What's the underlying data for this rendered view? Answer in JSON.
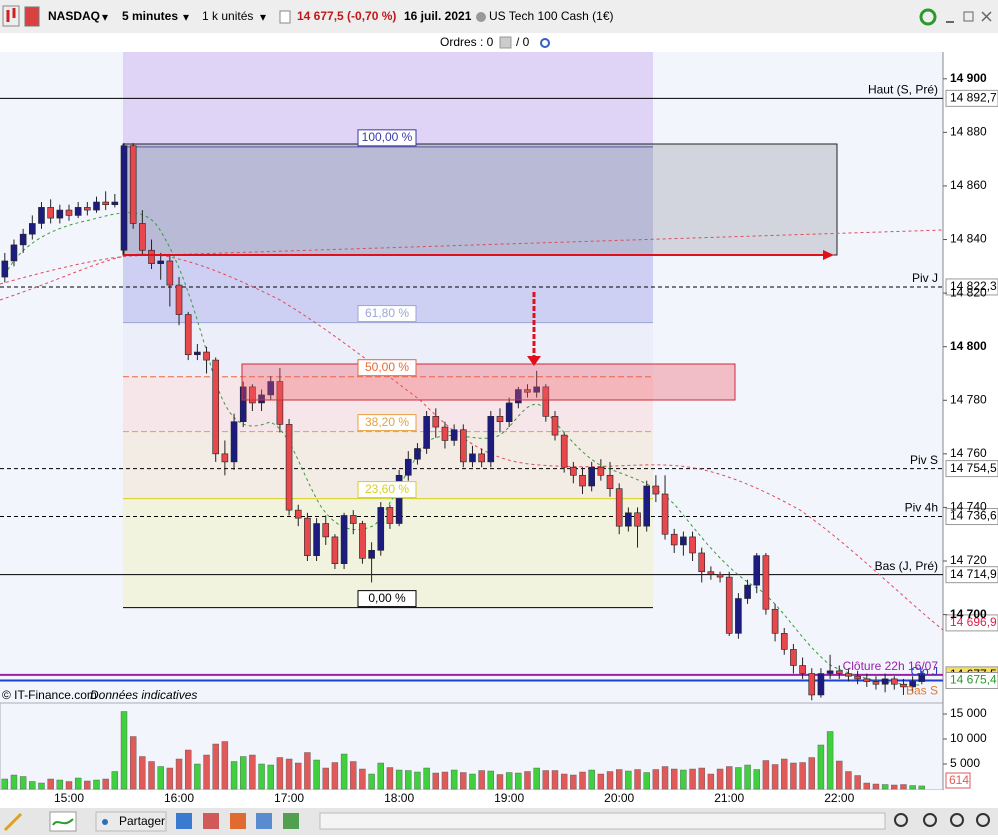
{
  "toolbar": {
    "symbol": "NASDAQ",
    "interval": "5 minutes",
    "size": "1 k unités",
    "quote": "14 677,5 (-0,70 %)",
    "date": "16 juil. 2021",
    "instrument": "US Tech 100 Cash (1€)"
  },
  "orders": {
    "label": "Ordres : 0",
    "pending": "/ 0"
  },
  "footer": {
    "copyright": "© IT-Finance.com",
    "note": "Données indicatives",
    "share": "Partager"
  },
  "chart_data": [
    {
      "type": "candlestick",
      "up_color": "#1c1c80",
      "down_color": "#e8474b",
      "categories": [
        null,
        null,
        null,
        null,
        null,
        null,
        null,
        "15:00",
        null,
        null,
        null,
        null,
        null,
        null,
        null,
        null,
        null,
        null,
        null,
        "16:00",
        null,
        null,
        null,
        null,
        null,
        null,
        null,
        null,
        null,
        null,
        null,
        "17:00",
        null,
        null,
        null,
        null,
        null,
        null,
        null,
        null,
        null,
        null,
        null,
        "18:00",
        null,
        null,
        null,
        null,
        null,
        null,
        null,
        null,
        null,
        null,
        null,
        "19:00",
        null,
        null,
        null,
        null,
        null,
        null,
        null,
        null,
        null,
        null,
        null,
        "20:00",
        null,
        null,
        null,
        null,
        null,
        null,
        null,
        null,
        null,
        null,
        null,
        "21:00",
        null,
        null,
        null,
        null,
        null,
        null,
        null,
        null,
        null,
        null,
        null,
        "22:00",
        null,
        null,
        null,
        null,
        null,
        null,
        null,
        null,
        null
      ],
      "open": [
        14826,
        14832,
        14838,
        14842,
        14846,
        14852,
        14848,
        14851,
        14849,
        14852,
        14851,
        14854,
        14853,
        14836,
        14875,
        14846,
        14836,
        14831,
        14832,
        14823,
        14812,
        14797,
        14798,
        14795,
        14760,
        14757,
        14772,
        14785,
        14779,
        14782,
        14787,
        14771,
        14739,
        14736,
        14722,
        14734,
        14729,
        14719,
        14737,
        14734,
        14721,
        14724,
        14740,
        14734,
        14752,
        14758,
        14762,
        14774,
        14770,
        14765,
        14769,
        14757,
        14760,
        14757,
        14774,
        14772,
        14779,
        14784,
        14783,
        14785,
        14774,
        14767,
        14755,
        14752,
        14748,
        14755,
        14752,
        14747,
        14733,
        14738,
        14733,
        14748,
        14745,
        14730,
        14726,
        14729,
        14723,
        14716,
        14715,
        14714,
        14693,
        14706,
        14711,
        14722,
        14702,
        14693,
        14687,
        14681,
        14678,
        14670,
        14678,
        14679,
        14678,
        14677,
        14676,
        14675,
        14674,
        14676,
        14674,
        14673,
        14675
      ],
      "high": [
        14835,
        14840,
        14844,
        14849,
        14854,
        14855,
        14853,
        14853,
        14854,
        14854,
        14856,
        14858,
        14857,
        14876,
        14876,
        14851,
        14840,
        14835,
        14834,
        14826,
        14813,
        14801,
        14800,
        14796,
        14765,
        14775,
        14787,
        14786,
        14784,
        14789,
        14792,
        14773,
        14741,
        14738,
        14736,
        14737,
        14730,
        14738,
        14739,
        14735,
        14727,
        14742,
        14741,
        14754,
        14761,
        14764,
        14776,
        14777,
        14772,
        14771,
        14771,
        14763,
        14762,
        14776,
        14777,
        14781,
        14785,
        14786,
        14791,
        14786,
        14776,
        14768,
        14757,
        14755,
        14757,
        14758,
        14757,
        14749,
        14740,
        14740,
        14750,
        14752,
        14752,
        14732,
        14731,
        14731,
        14725,
        14718,
        14716,
        14716,
        14708,
        14713,
        14723,
        14723,
        14704,
        14695,
        14689,
        14684,
        14680,
        14680,
        14685,
        14681,
        14680,
        14679,
        14678,
        14677,
        14678,
        14677,
        14676,
        14677,
        14679
      ],
      "low": [
        14824,
        14830,
        14835,
        14840,
        14844,
        14846,
        14846,
        14847,
        14848,
        14849,
        14850,
        14851,
        14852,
        14834,
        14844,
        14834,
        14829,
        14825,
        14815,
        14808,
        14795,
        14795,
        14790,
        14757,
        14752,
        14754,
        14770,
        14776,
        14776,
        14780,
        14768,
        14737,
        14733,
        14720,
        14720,
        14726,
        14717,
        14717,
        14730,
        14719,
        14712,
        14722,
        14732,
        14733,
        14750,
        14756,
        14760,
        14766,
        14762,
        14763,
        14755,
        14755,
        14755,
        14755,
        14768,
        14770,
        14777,
        14781,
        14781,
        14772,
        14765,
        14753,
        14749,
        14745,
        14746,
        14750,
        14744,
        14730,
        14731,
        14725,
        14731,
        14742,
        14728,
        14723,
        14722,
        14720,
        14712,
        14713,
        14712,
        14692,
        14691,
        14704,
        14708,
        14700,
        14690,
        14685,
        14678,
        14676,
        14668,
        14669,
        14676,
        14676,
        14675,
        14674,
        14673,
        14672,
        14671,
        14672,
        14670,
        14671,
        14674
      ],
      "close": [
        14832,
        14838,
        14842,
        14846,
        14852,
        14848,
        14851,
        14849,
        14852,
        14851,
        14854,
        14853,
        14854,
        14875,
        14846,
        14836,
        14831,
        14832,
        14823,
        14812,
        14797,
        14798,
        14795,
        14760,
        14757,
        14772,
        14785,
        14779,
        14782,
        14787,
        14771,
        14739,
        14736,
        14722,
        14734,
        14729,
        14719,
        14737,
        14734,
        14721,
        14724,
        14740,
        14734,
        14752,
        14758,
        14762,
        14774,
        14770,
        14765,
        14769,
        14757,
        14760,
        14757,
        14774,
        14772,
        14779,
        14784,
        14783,
        14785,
        14774,
        14767,
        14755,
        14752,
        14748,
        14755,
        14752,
        14747,
        14733,
        14738,
        14733,
        14748,
        14745,
        14730,
        14726,
        14729,
        14723,
        14716,
        14715,
        14714,
        14693,
        14706,
        14711,
        14722,
        14702,
        14693,
        14687,
        14681,
        14678,
        14670,
        14678,
        14679,
        14678,
        14677,
        14676,
        14675,
        14674,
        14676,
        14674,
        14673,
        14675,
        14678
      ],
      "ylim": [
        14667,
        14910
      ],
      "yticks": [
        {
          "value": 14900,
          "label": "14 900"
        },
        {
          "value": 14880,
          "label": "14 880"
        },
        {
          "value": 14860,
          "label": "14 860"
        },
        {
          "value": 14840,
          "label": "14 840"
        },
        {
          "value": 14820,
          "label": "14 820"
        },
        {
          "value": 14800,
          "label": "14 800"
        },
        {
          "value": 14780,
          "label": "14 780"
        },
        {
          "value": 14760,
          "label": "14 760"
        },
        {
          "value": 14740,
          "label": "14 740"
        },
        {
          "value": 14720,
          "label": "14 720"
        },
        {
          "value": 14700,
          "label": "14 700"
        }
      ],
      "levels": [
        {
          "name": "Haut (S, Pré)",
          "value": 14892.7,
          "label": "14 892,7",
          "color": "#000000",
          "line": "solid"
        },
        {
          "name": "Piv J",
          "value": 14822.3,
          "label": "14 822,3",
          "color": "#000000",
          "line": "dashed"
        },
        {
          "name": "Piv S",
          "value": 14754.5,
          "label": "14 754,5",
          "color": "#000000",
          "line": "dashed"
        },
        {
          "name": "Piv 4h",
          "value": 14736.6,
          "label": "14 736,6",
          "color": "#000000",
          "line": "dashed"
        },
        {
          "name": "Bas (J, Pré)",
          "value": 14714.9,
          "label": "14 714,9",
          "color": "#000000",
          "line": "solid"
        },
        {
          "value": 14696.9,
          "label": "14 696,9",
          "color": "#e0204a",
          "line": "none"
        },
        {
          "name": "Clôture 22h 16/07",
          "value": 14677.5,
          "label": "14 677,5",
          "color": "#9a1fa8",
          "line": "solid"
        },
        {
          "name": "Clo J",
          "value": 14675.4,
          "label": "14 675,4",
          "color": "#1f3fd0",
          "line": "solid"
        },
        {
          "name": "Bas S",
          "value": 14668.3,
          "color": "#e07a30",
          "line": "none"
        }
      ],
      "fibonacci": [
        {
          "label": "100,00 %",
          "value": 14874.6,
          "color": "#3a3aa8",
          "band": "rgba(110,110,220,0.28)"
        },
        {
          "label": "61,80 %",
          "value": 14809.0,
          "color": "#9aa6d8",
          "band": "#eceffa"
        },
        {
          "label": "50,00 %",
          "value": 14788.8,
          "color": "#e8683a",
          "band": "#f6e6ea"
        },
        {
          "label": "38,20 %",
          "value": 14768.3,
          "color": "#e8a040",
          "band": "#f3ece5"
        },
        {
          "label": "23,60 %",
          "value": 14743.3,
          "color": "#d8d020",
          "band": "#f2f3de"
        },
        {
          "label": "0,00 %",
          "value": 14702.6,
          "color": "#000000"
        }
      ]
    },
    {
      "type": "bar",
      "up_color": "#3fcf3f",
      "down_color": "#e05a5a",
      "values": [
        2000,
        2800,
        2500,
        1500,
        1200,
        2000,
        1800,
        1500,
        2200,
        1600,
        1800,
        2000,
        3500,
        15500,
        10500,
        6500,
        5500,
        4500,
        4200,
        6000,
        7800,
        5000,
        6800,
        9000,
        9500,
        5500,
        6500,
        6800,
        5000,
        4800,
        6300,
        6000,
        5200,
        7300,
        5800,
        4200,
        5300,
        7000,
        5500,
        4000,
        3000,
        5200,
        4300,
        3800,
        3700,
        3400,
        4200,
        3200,
        3400,
        3800,
        3300,
        3000,
        3700,
        3600,
        2900,
        3300,
        3200,
        3500,
        4200,
        3700,
        3700,
        3000,
        2800,
        3400,
        3800,
        3000,
        3500,
        3900,
        3600,
        3900,
        3300,
        3900,
        4500,
        4000,
        3800,
        4000,
        4200,
        3000,
        4000,
        4500,
        4300,
        4800,
        3900,
        5700,
        4900,
        6000,
        5200,
        5300,
        6300,
        8800,
        11500,
        5600,
        3500,
        2700,
        1200,
        1000,
        900,
        800,
        900,
        700,
        614
      ],
      "ylim": [
        0,
        17200
      ],
      "yticks": [
        {
          "value": 5000,
          "label": "5 000"
        },
        {
          "value": 10000,
          "label": "10 000"
        },
        {
          "value": 15000,
          "label": "15 000"
        }
      ]
    }
  ]
}
